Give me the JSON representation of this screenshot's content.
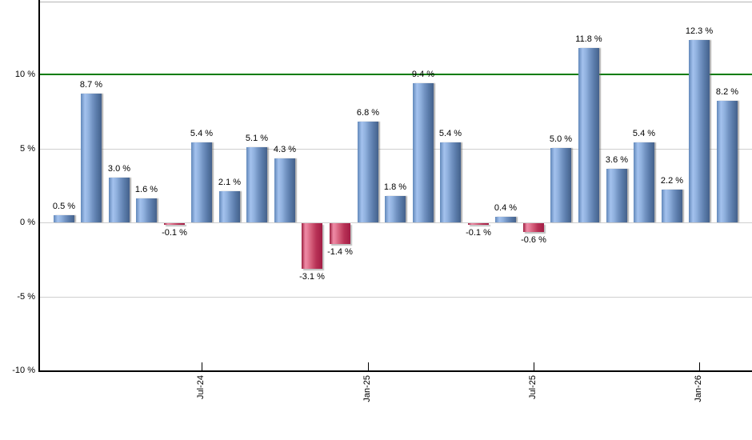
{
  "chart_data": {
    "type": "bar",
    "title": "",
    "xlabel": "",
    "ylabel": "",
    "unit": "%",
    "ylim": [
      -10,
      15
    ],
    "grid": true,
    "legend": "none",
    "colors": {
      "positive_bar": "#7495c4",
      "positive_bar_highlight": "#a4c2ee",
      "negative_bar": "#c22a50",
      "negative_bar_highlight": "#ee8aa5",
      "reference_line": "#008000",
      "gridline": "#cfcfcf",
      "axis": "#000000",
      "background": "#ffffff"
    },
    "reference_line": {
      "value": 10
    },
    "y_ticks": [
      {
        "value": 10,
        "label": "10 %"
      },
      {
        "value": 5,
        "label": "5 %"
      },
      {
        "value": 0,
        "label": "0 %"
      },
      {
        "value": -5,
        "label": "-5 %"
      },
      {
        "value": -10,
        "label": "-10 %"
      }
    ],
    "x_ticks": [
      {
        "bar_index": 5,
        "label": "Jul-24"
      },
      {
        "bar_index": 11,
        "label": "Jan-25"
      },
      {
        "bar_index": 17,
        "label": "Jul-25"
      },
      {
        "bar_index": 23,
        "label": "Jan-26"
      }
    ],
    "bars": [
      {
        "value": 0.5,
        "label": "0.5 %"
      },
      {
        "value": 8.7,
        "label": "8.7 %"
      },
      {
        "value": 3.0,
        "label": "3.0 %"
      },
      {
        "value": 1.6,
        "label": "1.6 %"
      },
      {
        "value": -0.1,
        "label": "-0.1 %"
      },
      {
        "value": 5.4,
        "label": "5.4 %"
      },
      {
        "value": 2.1,
        "label": "2.1 %"
      },
      {
        "value": 5.1,
        "label": "5.1 %"
      },
      {
        "value": 4.3,
        "label": "4.3 %"
      },
      {
        "value": -3.1,
        "label": "-3.1 %"
      },
      {
        "value": -1.4,
        "label": "-1.4 %"
      },
      {
        "value": 6.8,
        "label": "6.8 %"
      },
      {
        "value": 1.8,
        "label": "1.8 %"
      },
      {
        "value": 9.4,
        "label": "9.4 %"
      },
      {
        "value": 5.4,
        "label": "5.4 %"
      },
      {
        "value": -0.1,
        "label": "-0.1 %"
      },
      {
        "value": 0.4,
        "label": "0.4 %"
      },
      {
        "value": -0.6,
        "label": "-0.6 %"
      },
      {
        "value": 5.0,
        "label": "5.0 %"
      },
      {
        "value": 11.8,
        "label": "11.8 %"
      },
      {
        "value": 3.6,
        "label": "3.6 %"
      },
      {
        "value": 5.4,
        "label": "5.4 %"
      },
      {
        "value": 2.2,
        "label": "2.2 %"
      },
      {
        "value": 12.3,
        "label": "12.3 %"
      },
      {
        "value": 8.2,
        "label": "8.2 %"
      }
    ]
  }
}
